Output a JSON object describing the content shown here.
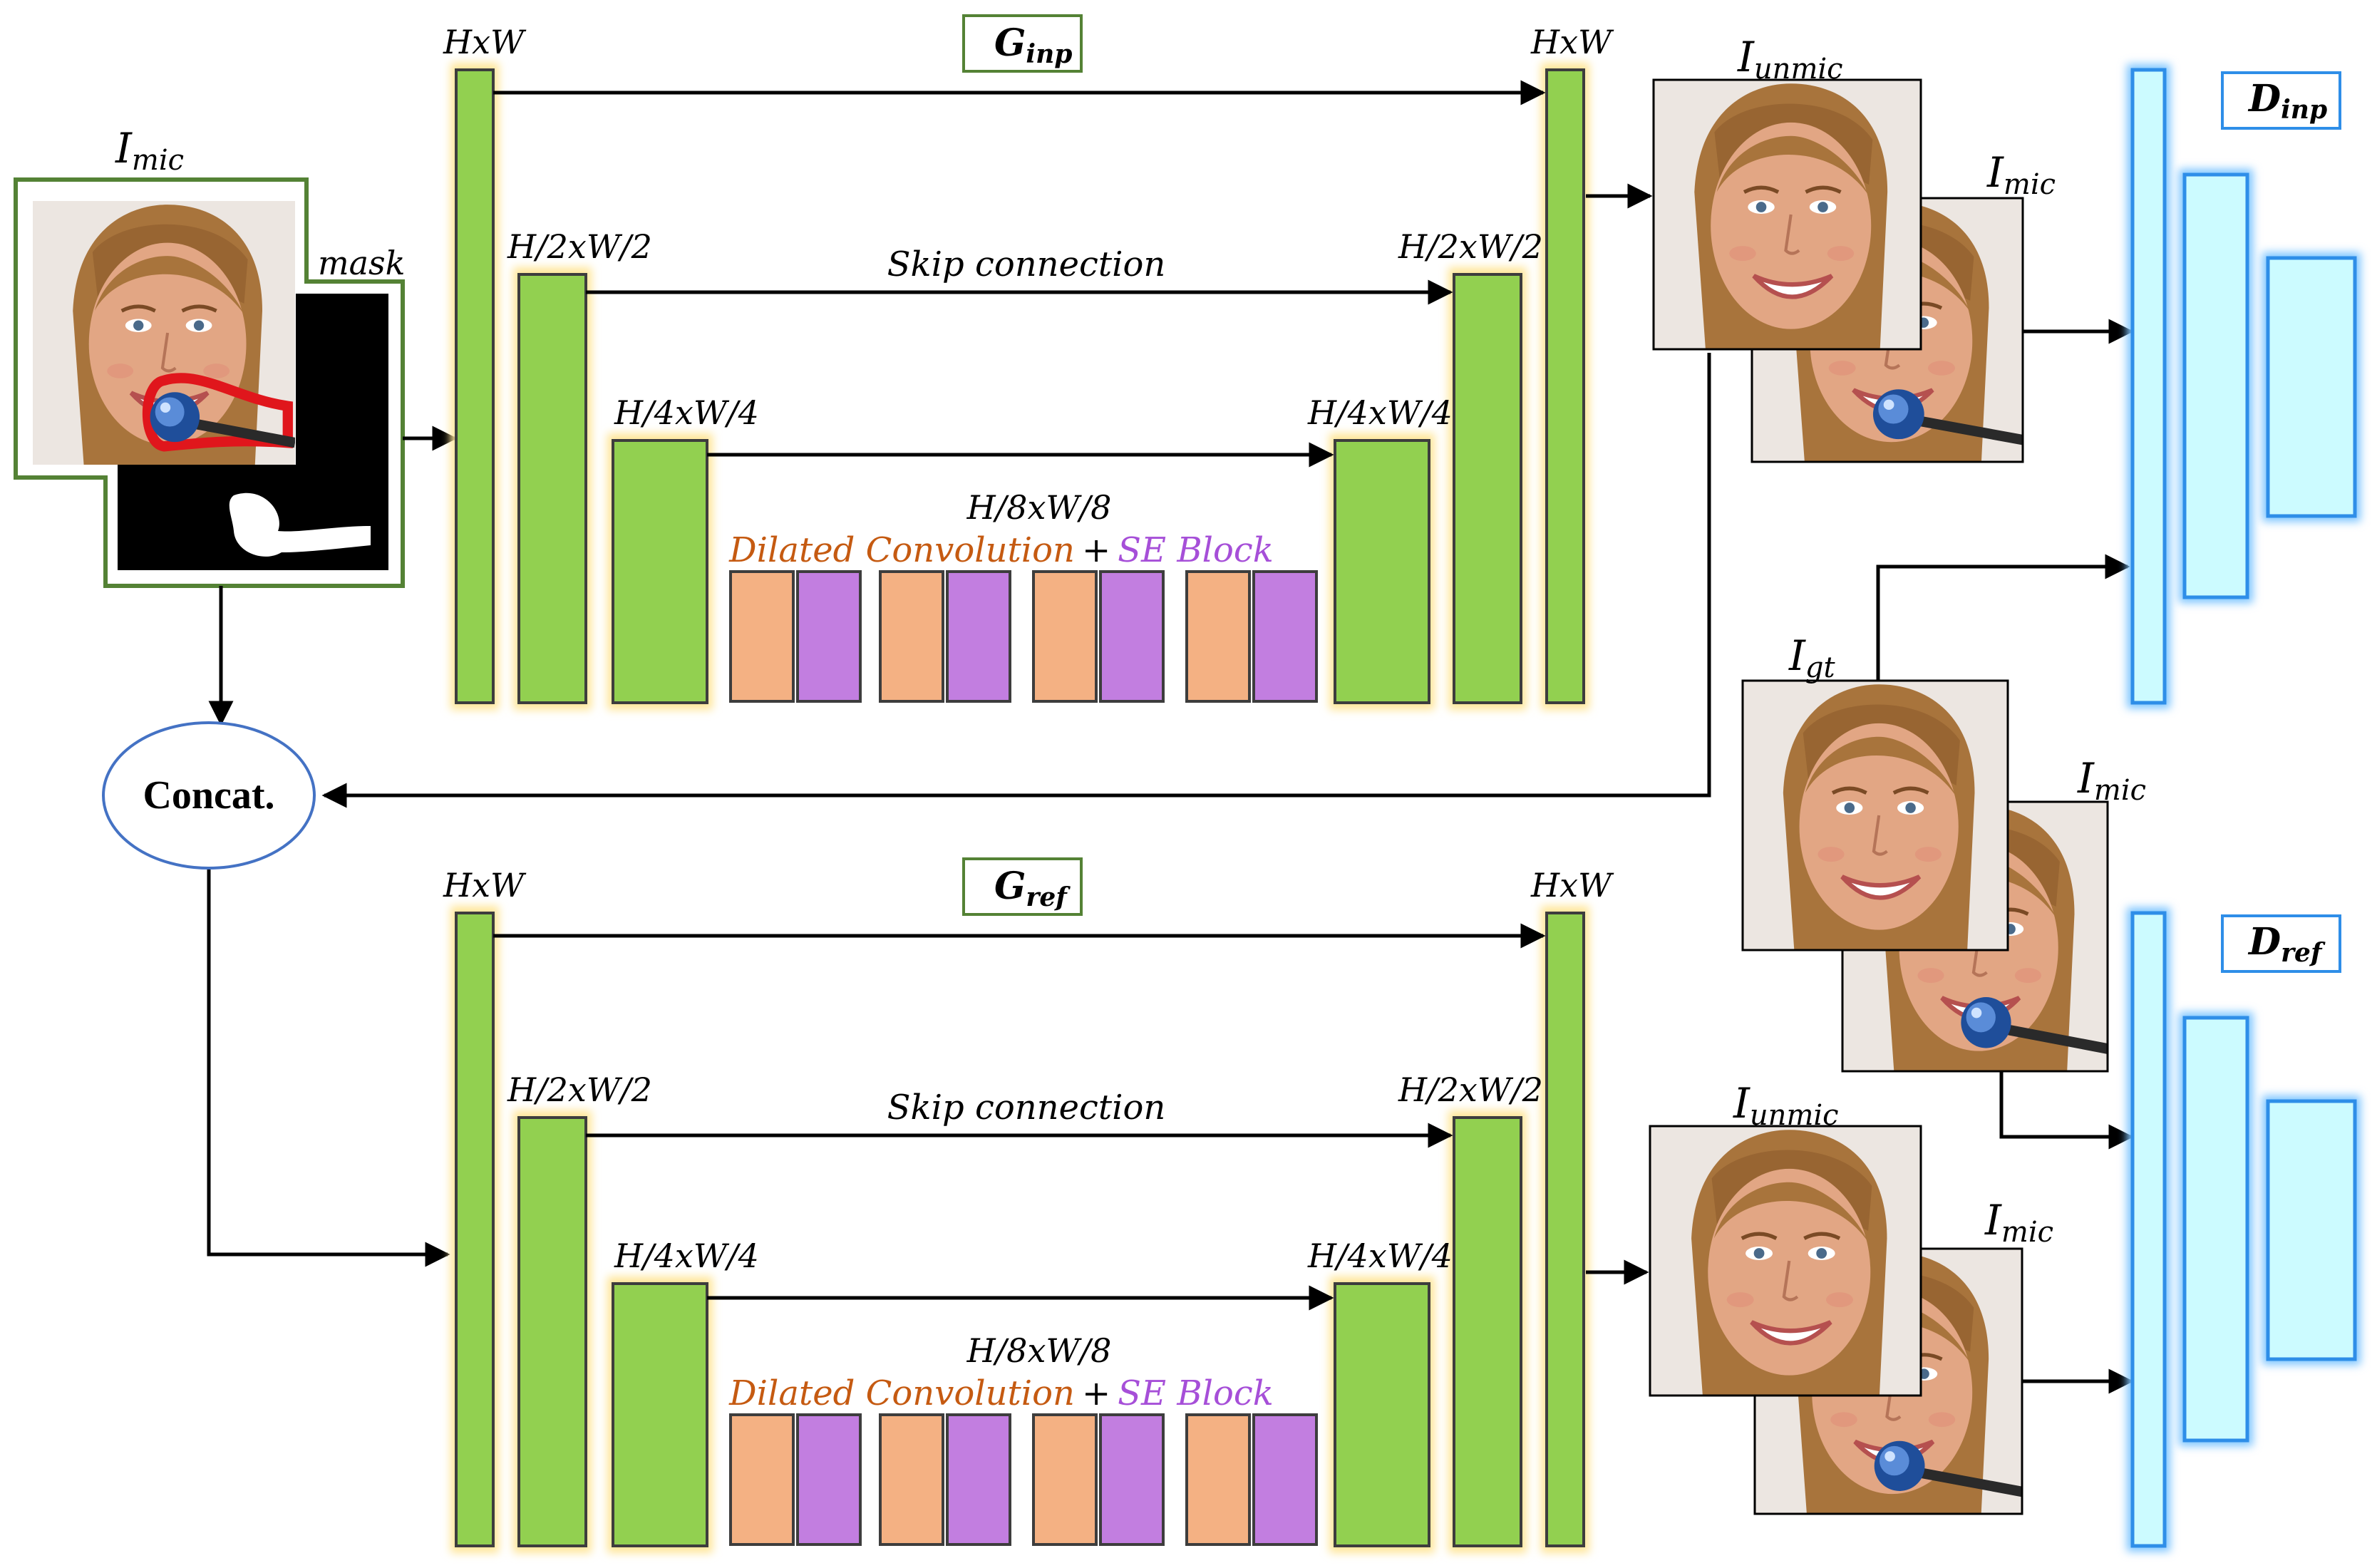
{
  "colors": {
    "encoder_block": "#92d050",
    "block_glow": "#ffe699",
    "dilated_conv": "#f4b183",
    "se_block": "#c27ee0",
    "discriminator_fill": "#ccfbff",
    "discriminator_edge": "#2e8ee8",
    "input_frame": "#548235",
    "dilated_text": "#c55a11",
    "se_text": "#a64fd8"
  },
  "input": {
    "image_label": "I",
    "image_label_sub": "mic",
    "mask_label": "mask"
  },
  "concat": {
    "label": "Concat."
  },
  "generators": [
    {
      "id": "inp",
      "title": "G",
      "title_sub": "inp",
      "res_full_left": "HxW",
      "res_full_right": "HxW",
      "res_half_left": "H/2xW/2",
      "res_half_right": "H/2xW/2",
      "res_quarter_left": "H/4xW/4",
      "res_quarter_right": "H/4xW/4",
      "res_eighth": "H/8xW/8",
      "skip_label": "Skip connection",
      "dilated_label": "Dilated Convolution",
      "plus": "+",
      "se_label": "SE Block"
    },
    {
      "id": "ref",
      "title": "G",
      "title_sub": "ref",
      "res_full_left": "HxW",
      "res_full_right": "HxW",
      "res_half_left": "H/2xW/2",
      "res_half_right": "H/2xW/2",
      "res_quarter_left": "H/4xW/4",
      "res_quarter_right": "H/4xW/4",
      "res_eighth": "H/8xW/8",
      "skip_label": "Skip connection",
      "dilated_label": "Dilated Convolution",
      "plus": "+",
      "se_label": "SE Block"
    }
  ],
  "outputs": {
    "inp_front": {
      "label": "I",
      "sub": "unmic"
    },
    "inp_back": {
      "label": "I",
      "sub": "mic"
    },
    "gt_front": {
      "label": "I",
      "sub": "gt"
    },
    "gt_back": {
      "label": "I",
      "sub": "mic"
    },
    "ref_front": {
      "label": "I",
      "sub": "unmic"
    },
    "ref_back": {
      "label": "I",
      "sub": "mic"
    }
  },
  "discriminators": [
    {
      "id": "inp",
      "title": "D",
      "title_sub": "inp"
    },
    {
      "id": "ref",
      "title": "D",
      "title_sub": "ref"
    }
  ]
}
